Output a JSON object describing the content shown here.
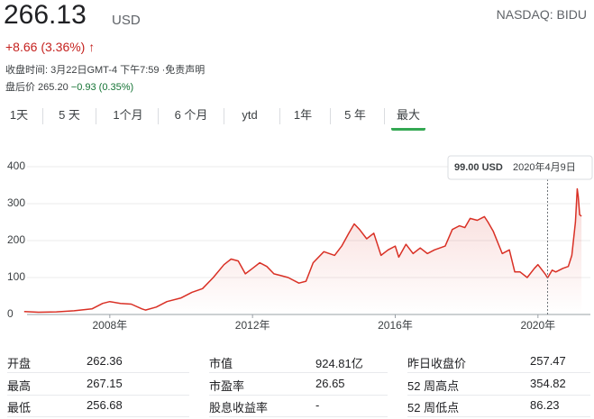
{
  "header": {
    "price": "266.13",
    "currency": "USD",
    "exchange": "NASDAQ: BIDU",
    "change": "+8.66 (3.36%)",
    "arrow": "↑",
    "close_time": "收盘时间: 3月22日GMT-4 下午7:59 ·免责声明",
    "after_hours_label": "盘后价 265.20",
    "after_hours_change": "−0.93 (0.35%)"
  },
  "tabs": [
    "1天",
    "5 天",
    "1个月",
    "6 个月",
    "ytd",
    "1年",
    "5 年",
    "最大"
  ],
  "active_tab": "最大",
  "chart_data": {
    "type": "line",
    "color": "#d93025",
    "grid": true,
    "xlim": [
      2005.68,
      2021.47
    ],
    "xticks": [
      {
        "value": 2008,
        "label": "2008年"
      },
      {
        "value": 2012,
        "label": "2012年"
      },
      {
        "value": 2016,
        "label": "2016年"
      },
      {
        "value": 2020,
        "label": "2020年"
      }
    ],
    "ylim": [
      0,
      400
    ],
    "yticks": [
      0,
      100,
      200,
      300,
      400
    ],
    "x": [
      2005.6,
      2006,
      2006.5,
      2007,
      2007.5,
      2007.8,
      2008,
      2008.3,
      2008.6,
      2008.9,
      2009.0,
      2009.3,
      2009.6,
      2010,
      2010.3,
      2010.6,
      2010.9,
      2011.2,
      2011.4,
      2011.6,
      2011.8,
      2012,
      2012.2,
      2012.4,
      2012.6,
      2012.8,
      2013,
      2013.3,
      2013.5,
      2013.7,
      2014,
      2014.3,
      2014.5,
      2014.7,
      2014.85,
      2015,
      2015.2,
      2015.4,
      2015.6,
      2015.8,
      2016,
      2016.1,
      2016.3,
      2016.5,
      2016.7,
      2016.9,
      2017.1,
      2017.4,
      2017.6,
      2017.8,
      2017.95,
      2018.1,
      2018.3,
      2018.5,
      2018.6,
      2018.75,
      2019,
      2019.2,
      2019.35,
      2019.5,
      2019.7,
      2019.9,
      2020.0,
      2020.2,
      2020.27,
      2020.4,
      2020.5,
      2020.7,
      2020.85,
      2020.95,
      2021.05,
      2021.1,
      2021.13,
      2021.17,
      2021.22
    ],
    "values": [
      8,
      6,
      7,
      10,
      15,
      30,
      35,
      30,
      28,
      15,
      12,
      20,
      35,
      45,
      60,
      70,
      100,
      135,
      150,
      145,
      110,
      125,
      140,
      130,
      110,
      105,
      100,
      85,
      90,
      140,
      170,
      160,
      185,
      220,
      245,
      230,
      205,
      220,
      160,
      175,
      185,
      155,
      190,
      165,
      180,
      165,
      175,
      185,
      230,
      240,
      235,
      260,
      255,
      265,
      250,
      225,
      165,
      175,
      115,
      115,
      100,
      125,
      135,
      110,
      99,
      120,
      115,
      125,
      130,
      160,
      250,
      340,
      320,
      270,
      266
    ],
    "tooltip": {
      "value": "99.00 USD",
      "date": "2020年4月9日",
      "x": 2020.27
    }
  },
  "stats": [
    [
      {
        "label": "开盘",
        "value": "262.36"
      },
      {
        "label": "最高",
        "value": "267.15"
      },
      {
        "label": "最低",
        "value": "256.68"
      }
    ],
    [
      {
        "label": "市值",
        "value": "924.81亿"
      },
      {
        "label": "市盈率",
        "value": "26.65"
      },
      {
        "label": "股息收益率",
        "value": "-"
      }
    ],
    [
      {
        "label": "昨日收盘价",
        "value": "257.47"
      },
      {
        "label": "52 周高点",
        "value": "354.82"
      },
      {
        "label": "52 周低点",
        "value": "86.23"
      }
    ]
  ]
}
